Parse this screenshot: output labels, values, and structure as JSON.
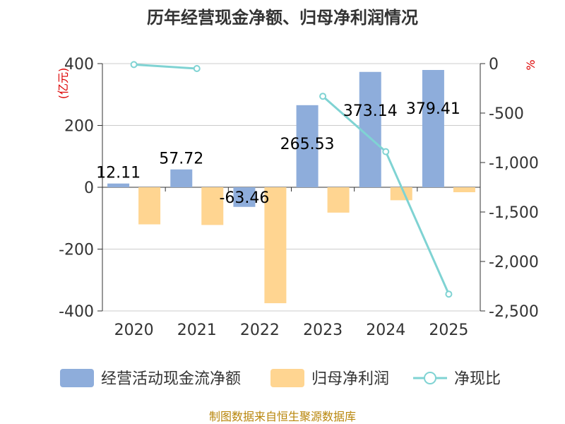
{
  "chart_data": {
    "type": "bar",
    "title": "历年经营现金净额、归母净利润情况",
    "categories": [
      "2020",
      "2021",
      "2022",
      "2023",
      "2024",
      "2025"
    ],
    "ylabel": "(亿元)",
    "y2label": "%",
    "ylim": [
      -400,
      400
    ],
    "yticks": [
      "400",
      "200",
      "0",
      "-200",
      "-400"
    ],
    "y2lim": [
      -2500,
      0
    ],
    "y2ticks": [
      "0",
      "-500",
      "-1,000",
      "-1,500",
      "-2,000",
      "-2,500"
    ],
    "grid": true,
    "series": [
      {
        "name": "经营活动现金流净额",
        "kind": "bar",
        "axis": "left",
        "color": "#8eaddb",
        "values": [
          12.11,
          57.72,
          -63.46,
          265.53,
          373.14,
          379.41
        ],
        "labels": [
          "12.11",
          "57.72",
          "-63.46",
          "265.53",
          "373.14",
          "379.41"
        ]
      },
      {
        "name": "归母净利润",
        "kind": "bar",
        "axis": "left",
        "color": "#ffd591",
        "values": [
          -120,
          -122,
          -375,
          -82,
          -42,
          -16
        ]
      },
      {
        "name": "净现比",
        "kind": "line",
        "axis": "right",
        "color": "#7fd3d3",
        "values": [
          -10,
          -50,
          null,
          -330,
          -890,
          -2330
        ]
      }
    ],
    "legend": [
      "经营活动现金流净额",
      "归母净利润",
      "净现比"
    ],
    "legend_position": "bottom",
    "source": "制图数据来自恒生聚源数据库"
  }
}
